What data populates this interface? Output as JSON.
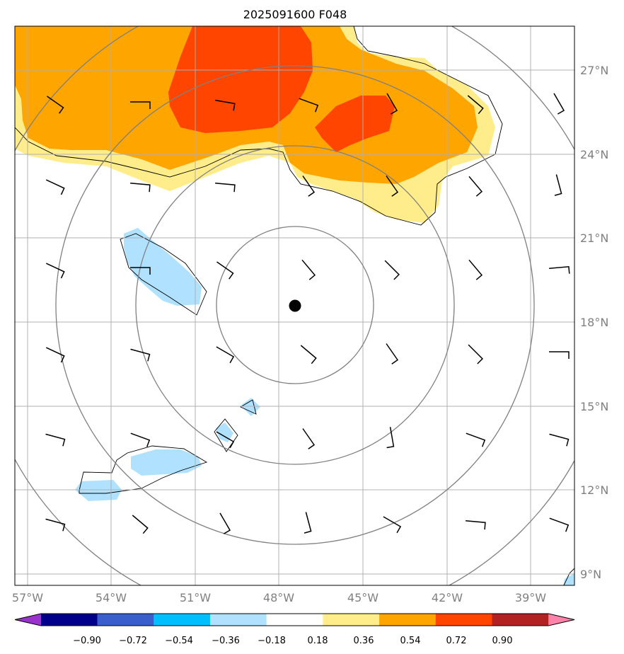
{
  "title": "2025091600 F048",
  "map": {
    "lon_range": [
      -58.0,
      -38.0
    ],
    "lat_range": [
      8.6,
      28.6
    ],
    "lon_ticks": [
      {
        "value": -57,
        "label": "57°W"
      },
      {
        "value": -54,
        "label": "54°W"
      },
      {
        "value": -51,
        "label": "51°W"
      },
      {
        "value": -48,
        "label": "48°W"
      },
      {
        "value": -45,
        "label": "45°W"
      },
      {
        "value": -42,
        "label": "42°W"
      },
      {
        "value": -39,
        "label": "39°W"
      }
    ],
    "lat_ticks": [
      {
        "value": 27,
        "label": "27°N"
      },
      {
        "value": 24,
        "label": "24°N"
      },
      {
        "value": 21,
        "label": "21°N"
      },
      {
        "value": 18,
        "label": "18°N"
      },
      {
        "value": 15,
        "label": "15°N"
      },
      {
        "value": 12,
        "label": "12°N"
      },
      {
        "value": 9,
        "label": "9°N"
      }
    ],
    "center": {
      "lon": -47.4,
      "lat": 18.6
    },
    "range_ring_count": 4,
    "gridlines": true
  },
  "colorbar": {
    "levels": [
      "−0.90",
      "−0.72",
      "−0.54",
      "−0.36",
      "−0.18",
      "0.18",
      "0.36",
      "0.54",
      "0.72",
      "0.90"
    ],
    "colors": [
      "#9a32cd",
      "#00008b",
      "#3a5fcd",
      "#00bfff",
      "#b0e2ff",
      "#ffffff",
      "#ffec8b",
      "#ffa500",
      "#ff4500",
      "#b22222",
      "#ff82ab"
    ]
  },
  "legend_colors": {
    "strong_positive": "#ff4500",
    "positive": "#ffa500",
    "weak_positive": "#ffec8b",
    "weak_negative": "#b0e2ff"
  }
}
